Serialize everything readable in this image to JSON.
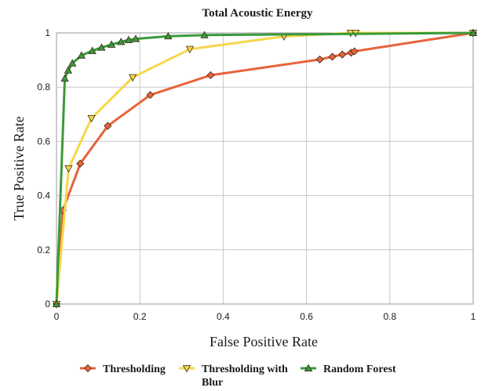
{
  "chart_data": {
    "type": "line",
    "title": "Total Acoustic Energy",
    "xlabel": "False Positive Rate",
    "ylabel": "True Positive Rate",
    "xlim": [
      0,
      1
    ],
    "ylim": [
      0,
      1
    ],
    "xticks": [
      "0",
      "0.2",
      "0.4",
      "0.6",
      "0.8",
      "1"
    ],
    "yticks": [
      "0",
      "0.2",
      "0.4",
      "0.6",
      "0.8",
      "1"
    ],
    "grid": true,
    "legend": "bottom",
    "series": [
      {
        "name": "Thresholding",
        "color": "#e8623c",
        "marker": "diamond",
        "x": [
          0,
          0.015,
          0.057,
          0.123,
          0.225,
          0.37,
          0.632,
          0.662,
          0.686,
          0.707,
          0.715,
          1.0
        ],
        "y": [
          0,
          0.345,
          0.518,
          0.657,
          0.771,
          0.844,
          0.902,
          0.912,
          0.92,
          0.927,
          0.932,
          1.0
        ]
      },
      {
        "name": "Thresholding with Blur",
        "legend_lines": [
          "Thresholding with",
          "Blur"
        ],
        "color": "#f5d74a",
        "marker": "triangle-down",
        "x": [
          0,
          0.029,
          0.084,
          0.183,
          0.32,
          0.546,
          0.706,
          0.718,
          1.0
        ],
        "y": [
          0,
          0.5,
          0.685,
          0.836,
          0.94,
          0.987,
          1.0,
          1.0,
          1.0
        ],
        "labels_split": true
      },
      {
        "name": "Random Forest",
        "color": "#3a9a3a",
        "marker": "triangle-up",
        "x": [
          0,
          0.02,
          0.028,
          0.038,
          0.06,
          0.086,
          0.108,
          0.132,
          0.155,
          0.173,
          0.19,
          0.268,
          0.355,
          1.0
        ],
        "y": [
          0,
          0.832,
          0.862,
          0.888,
          0.917,
          0.934,
          0.946,
          0.957,
          0.967,
          0.974,
          0.978,
          0.988,
          0.992,
          1.0
        ]
      }
    ]
  }
}
